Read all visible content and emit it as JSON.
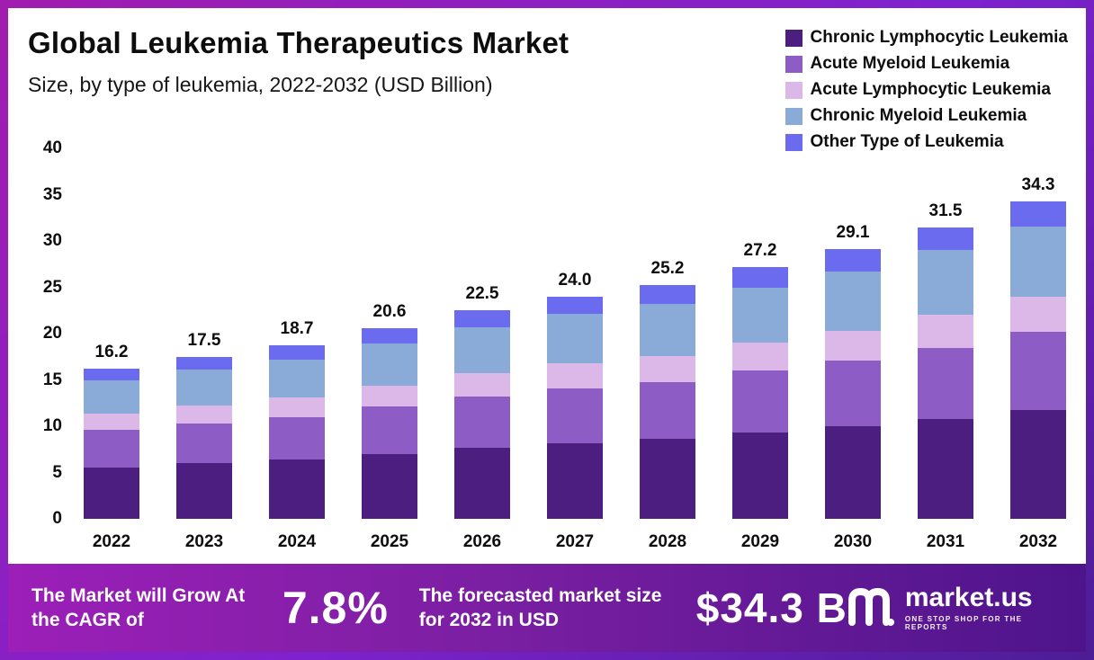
{
  "header": {
    "title": "Global Leukemia Therapeutics Market",
    "subtitle": "Size, by type of leukemia, 2022-2032 (USD Billion)"
  },
  "legend": {
    "position": "top-right",
    "items": [
      {
        "label": "Chronic Lymphocytic Leukemia",
        "color": "#4b1e7f"
      },
      {
        "label": "Acute Myeloid Leukemia",
        "color": "#8d5cc5"
      },
      {
        "label": "Acute Lymphocytic Leukemia",
        "color": "#dcb8e8"
      },
      {
        "label": "Chronic Myeloid Leukemia",
        "color": "#8aabd8"
      },
      {
        "label": "Other Type of Leukemia",
        "color": "#6a6bee"
      }
    ]
  },
  "chart_data": {
    "type": "bar",
    "stacked": true,
    "title": "Global Leukemia Therapeutics Market Size, by type of leukemia, 2022-2032 (USD Billion)",
    "xlabel": "",
    "ylabel": "",
    "ylim": [
      0,
      40
    ],
    "yticks": [
      0,
      5,
      10,
      15,
      20,
      25,
      30,
      35,
      40
    ],
    "grid": false,
    "legend_position": "top-right",
    "categories": [
      "2022",
      "2023",
      "2024",
      "2025",
      "2026",
      "2027",
      "2028",
      "2029",
      "2030",
      "2031",
      "2032"
    ],
    "totals": [
      "16.2",
      "17.5",
      "18.7",
      "20.6",
      "22.5",
      "24.0",
      "25.2",
      "27.2",
      "29.1",
      "31.5",
      "34.3"
    ],
    "series": [
      {
        "name": "Chronic Lymphocytic Leukemia",
        "color": "#4b1e7f",
        "values": [
          5.5,
          6.0,
          6.4,
          7.0,
          7.7,
          8.2,
          8.6,
          9.3,
          10.0,
          10.8,
          11.8
        ]
      },
      {
        "name": "Acute Myeloid Leukemia",
        "color": "#8d5cc5",
        "values": [
          4.1,
          4.3,
          4.6,
          5.1,
          5.5,
          5.9,
          6.2,
          6.7,
          7.1,
          7.7,
          8.4
        ]
      },
      {
        "name": "Acute Lymphocytic Leukemia",
        "color": "#dcb8e8",
        "values": [
          1.8,
          1.9,
          2.1,
          2.3,
          2.5,
          2.7,
          2.8,
          3.0,
          3.2,
          3.5,
          3.8
        ]
      },
      {
        "name": "Chronic Myeloid Leukemia",
        "color": "#8aabd8",
        "values": [
          3.6,
          3.9,
          4.1,
          4.5,
          5.0,
          5.3,
          5.6,
          6.0,
          6.4,
          7.0,
          7.6
        ]
      },
      {
        "name": "Other Type of Leukemia",
        "color": "#6a6bee",
        "values": [
          1.2,
          1.4,
          1.5,
          1.7,
          1.8,
          1.9,
          2.0,
          2.2,
          2.4,
          2.5,
          2.7
        ]
      }
    ]
  },
  "footer": {
    "cagr_label": "The Market will Grow At the CAGR of",
    "cagr_value": "7.8%",
    "forecast_label": "The forecasted market size for 2032 in USD",
    "forecast_value": "$34.3 B",
    "brand": {
      "name": "market.us",
      "tagline": "ONE STOP SHOP FOR THE REPORTS"
    }
  },
  "colors": {
    "frame": "#7e22ce",
    "footer_gradient_start": "#9c1fb8",
    "footer_gradient_end": "#4e148c",
    "text": "#0d0d0d"
  }
}
